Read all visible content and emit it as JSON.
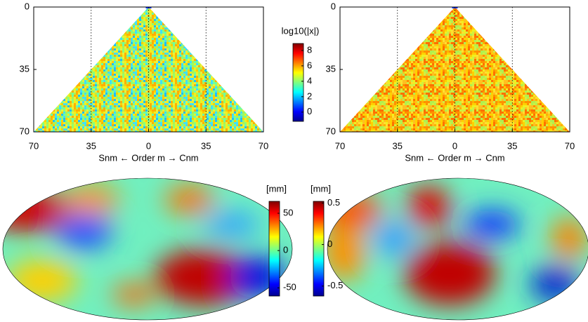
{
  "chart_data": [
    {
      "type": "heatmap",
      "xlim": [
        -70,
        70
      ],
      "ylim": [
        0,
        70
      ],
      "xticks": [
        {
          "value": -70,
          "label": "70"
        },
        {
          "value": -35,
          "label": "35"
        },
        0,
        35,
        70
      ],
      "yticks": [
        0,
        35,
        70
      ],
      "xlabel": "Snm ← Order m → Cnm",
      "grid": true,
      "colorbar": {
        "title": "log10(|x|)",
        "lim": [
          -1.2,
          8.9
        ],
        "ticks": [
          0,
          2,
          4,
          6,
          8
        ]
      }
    },
    {
      "type": "heatmap",
      "xlim": [
        -70,
        70
      ],
      "ylim": [
        0,
        70
      ],
      "xticks": [
        {
          "value": -70,
          "label": "70"
        },
        {
          "value": -35,
          "label": "35"
        },
        0,
        35,
        70
      ],
      "yticks": [
        0,
        35,
        70
      ],
      "xlabel": "Snm ← Order m → Cnm",
      "grid": true
    },
    {
      "type": "map",
      "colorbar": {
        "title": "[mm]",
        "lim": [
          -61,
          66
        ],
        "ticks": [
          -50,
          0,
          50
        ]
      }
    },
    {
      "type": "map",
      "colorbar": {
        "title": "[mm]",
        "lim": [
          -0.62,
          0.52
        ],
        "ticks": [
          -0.5,
          0,
          0.5
        ]
      }
    }
  ]
}
